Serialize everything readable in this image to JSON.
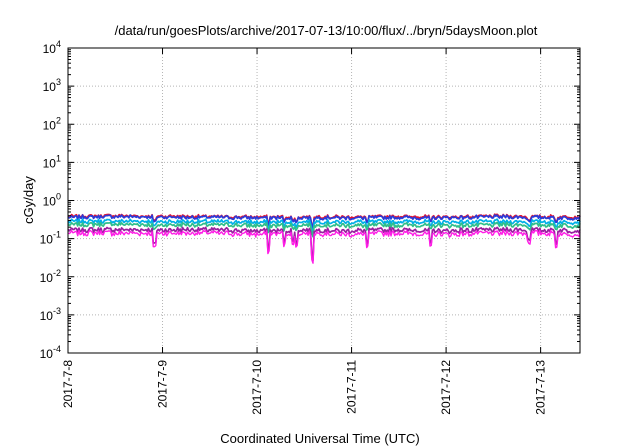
{
  "chart_data": {
    "type": "line",
    "title": "/data/run/goesPlots/archive/2017-07-13/10:00/flux/../bryn/5daysMoon.plot",
    "xlabel": "Coordinated Universal Time (UTC)",
    "ylabel": "cGy/day",
    "yscale": "log",
    "ylim": [
      0.0001,
      10000
    ],
    "xlim": [
      "2017-07-08T00:00",
      "2017-07-13T10:00"
    ],
    "grid": true,
    "y_ticks": [
      {
        "value": 0.0001,
        "base": "10",
        "exp": "-4"
      },
      {
        "value": 0.001,
        "base": "10",
        "exp": "-3"
      },
      {
        "value": 0.01,
        "base": "10",
        "exp": "-2"
      },
      {
        "value": 0.1,
        "base": "10",
        "exp": "-1"
      },
      {
        "value": 1,
        "base": "10",
        "exp": "0"
      },
      {
        "value": 10,
        "base": "10",
        "exp": "1"
      },
      {
        "value": 100,
        "base": "10",
        "exp": "2"
      },
      {
        "value": 1000,
        "base": "10",
        "exp": "3"
      },
      {
        "value": 10000,
        "base": "10",
        "exp": "4"
      }
    ],
    "x_ticks": [
      {
        "value": "2017-07-08T00:00",
        "label": "2017-7-8"
      },
      {
        "value": "2017-07-09T00:00",
        "label": "2017-7-9"
      },
      {
        "value": "2017-07-10T00:00",
        "label": "2017-7-10"
      },
      {
        "value": "2017-07-11T00:00",
        "label": "2017-7-11"
      },
      {
        "value": "2017-07-12T00:00",
        "label": "2017-7-12"
      },
      {
        "value": "2017-07-13T00:00",
        "label": "2017-7-13"
      }
    ],
    "x": [
      "2017-07-08T00:00",
      "2017-07-08T12:00",
      "2017-07-09T00:00",
      "2017-07-09T12:00",
      "2017-07-10T00:00",
      "2017-07-10T12:00",
      "2017-07-11T00:00",
      "2017-07-11T12:00",
      "2017-07-12T00:00",
      "2017-07-12T12:00",
      "2017-07-13T00:00",
      "2017-07-13T10:00"
    ],
    "series": [
      {
        "color": "#e8132e",
        "values": [
          0.38,
          0.4,
          0.39,
          0.38,
          0.37,
          0.38,
          0.37,
          0.38,
          0.37,
          0.39,
          0.38,
          0.37
        ]
      },
      {
        "color": "#2a3bd9",
        "values": [
          0.36,
          0.38,
          0.37,
          0.36,
          0.35,
          0.36,
          0.35,
          0.36,
          0.35,
          0.37,
          0.36,
          0.35
        ]
      },
      {
        "color": "#00b0e8",
        "values": [
          0.28,
          0.29,
          0.28,
          0.28,
          0.27,
          0.28,
          0.27,
          0.28,
          0.27,
          0.28,
          0.28,
          0.27
        ]
      },
      {
        "color": "#2fbf8a",
        "values": [
          0.23,
          0.24,
          0.23,
          0.23,
          0.22,
          0.23,
          0.22,
          0.23,
          0.22,
          0.23,
          0.23,
          0.22
        ]
      },
      {
        "color": "#9a1fa0",
        "values": [
          0.17,
          0.17,
          0.17,
          0.17,
          0.16,
          0.17,
          0.16,
          0.17,
          0.16,
          0.17,
          0.17,
          0.16
        ]
      },
      {
        "color": "#ff1de6",
        "values": [
          0.14,
          0.14,
          0.14,
          0.14,
          0.13,
          0.14,
          0.13,
          0.14,
          0.13,
          0.14,
          0.14,
          0.13
        ]
      }
    ],
    "dips": [
      {
        "x": "2017-07-08T22:00",
        "value": 0.06
      },
      {
        "x": "2017-07-10T03:00",
        "value": 0.05
      },
      {
        "x": "2017-07-10T07:00",
        "value": 0.07
      },
      {
        "x": "2017-07-10T09:00",
        "value": 0.07
      },
      {
        "x": "2017-07-10T10:00",
        "value": 0.06
      },
      {
        "x": "2017-07-10T14:00",
        "value": 0.025
      },
      {
        "x": "2017-07-11T04:00",
        "value": 0.06
      },
      {
        "x": "2017-07-11T20:00",
        "value": 0.06
      },
      {
        "x": "2017-07-12T21:00",
        "value": 0.08
      },
      {
        "x": "2017-07-13T04:00",
        "value": 0.06
      }
    ]
  }
}
